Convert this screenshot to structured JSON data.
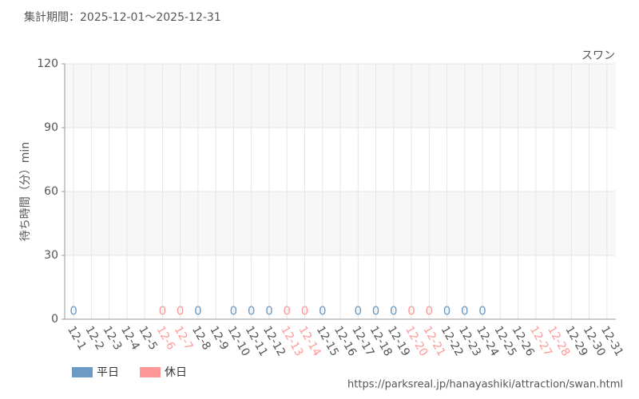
{
  "chart_data": {
    "type": "bar",
    "title": "集計期間：2025-12-01～2025-12-31",
    "subtitle": "スワン",
    "y_label": "待ち時間（分）min",
    "source": "https://parksreal.jp/hanayashiki/attraction/swan.html",
    "categories": [
      "12-1",
      "12-2",
      "12-3",
      "12-4",
      "12-5",
      "12-6",
      "12-7",
      "12-8",
      "12-9",
      "12-10",
      "12-11",
      "12-12",
      "12-13",
      "12-14",
      "12-15",
      "12-16",
      "12-17",
      "12-18",
      "12-19",
      "12-20",
      "12-21",
      "12-22",
      "12-23",
      "12-24",
      "12-25",
      "12-26",
      "12-27",
      "12-28",
      "12-29",
      "12-30",
      "12-31"
    ],
    "category_label_colors": [
      "#555555",
      "#555555",
      "#555555",
      "#555555",
      "#555555",
      "#ff9999",
      "#ff9999",
      "#555555",
      "#555555",
      "#555555",
      "#555555",
      "#555555",
      "#ff9999",
      "#ff9999",
      "#555555",
      "#555555",
      "#555555",
      "#555555",
      "#555555",
      "#ff9999",
      "#ff9999",
      "#555555",
      "#555555",
      "#555555",
      "#555555",
      "#555555",
      "#ff9999",
      "#ff9999",
      "#555555",
      "#555555",
      "#555555"
    ],
    "series": [
      {
        "name": "平日",
        "color": "#6b9ac4",
        "values": [
          0,
          null,
          null,
          null,
          null,
          null,
          null,
          0,
          null,
          0,
          0,
          0,
          null,
          null,
          0,
          null,
          0,
          0,
          0,
          null,
          null,
          0,
          0,
          0,
          null,
          null,
          null,
          null,
          null,
          null,
          null
        ]
      },
      {
        "name": "休日",
        "color": "#ff9999",
        "values": [
          null,
          null,
          null,
          null,
          null,
          0,
          0,
          null,
          null,
          null,
          null,
          null,
          0,
          0,
          null,
          null,
          null,
          null,
          null,
          0,
          0,
          null,
          null,
          null,
          null,
          null,
          null,
          null,
          null,
          null,
          null
        ]
      }
    ],
    "ylim": [
      0,
      120
    ],
    "yticks": [
      0,
      30,
      60,
      90,
      120
    ],
    "grid": true
  }
}
